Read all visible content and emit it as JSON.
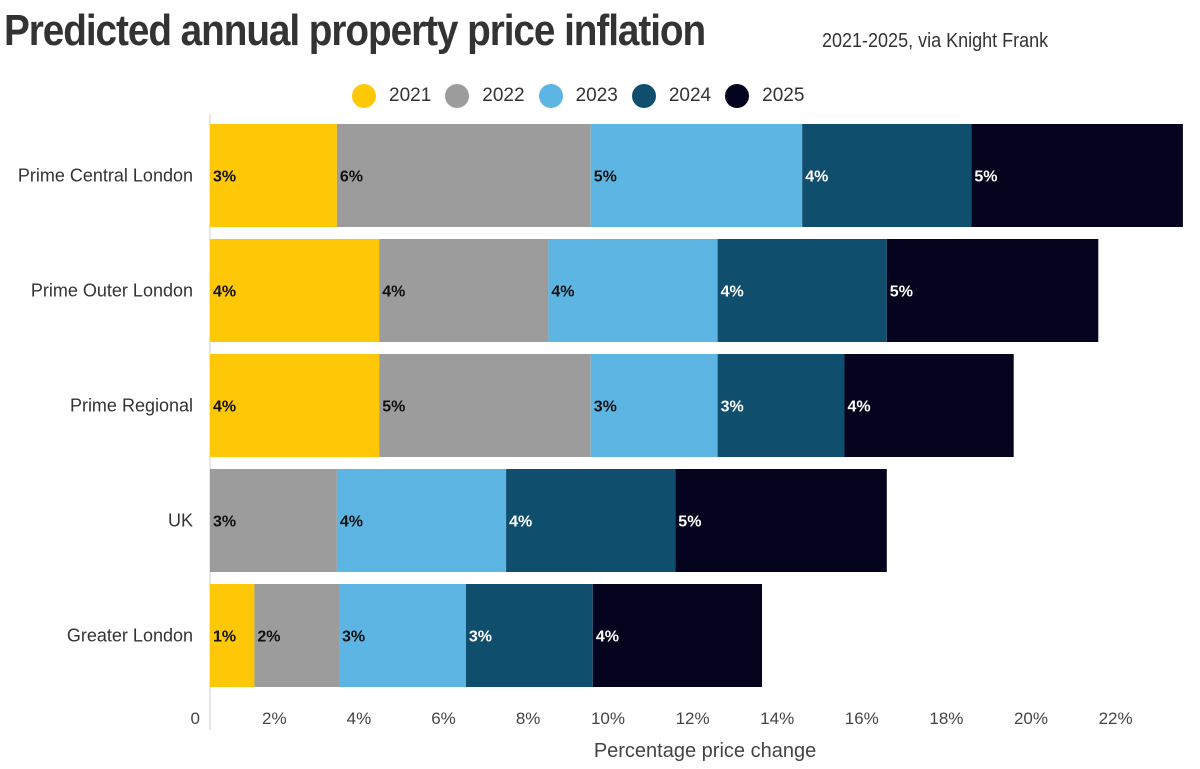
{
  "chart_data": {
    "type": "bar",
    "orientation": "horizontal",
    "stacked": true,
    "title": "Predicted annual property price inflation",
    "subtitle": "2021-2025, via Knight Frank",
    "xlabel": "Percentage price change",
    "ylabel": "",
    "xlim": [
      0,
      23.1
    ],
    "x_ticks": [
      0,
      2,
      4,
      6,
      8,
      10,
      12,
      14,
      16,
      18,
      20,
      22
    ],
    "x_tick_labels": [
      "0",
      "2%",
      "4%",
      "6%",
      "8%",
      "10%",
      "12%",
      "14%",
      "16%",
      "18%",
      "20%",
      "22%"
    ],
    "grid": false,
    "legend_position": "top-center",
    "categories": [
      "Prime Central London",
      "Prime Outer London",
      "Prime Regional",
      "UK",
      "Greater London"
    ],
    "series": [
      {
        "name": "2021",
        "color": "#FEC806",
        "label_color": "#111111",
        "values": [
          3,
          4,
          4,
          0,
          1.05
        ],
        "labels": [
          "3%",
          "4%",
          "4%",
          "",
          "1%"
        ]
      },
      {
        "name": "2022",
        "color": "#9C9C9C",
        "label_color": "#111111",
        "values": [
          6,
          4,
          5,
          3,
          2
        ],
        "labels": [
          "6%",
          "4%",
          "5%",
          "3%",
          "2%"
        ]
      },
      {
        "name": "2023",
        "color": "#5DB5E3",
        "label_color": "#111111",
        "values": [
          5,
          4,
          3,
          4,
          3
        ],
        "labels": [
          "5%",
          "4%",
          "3%",
          "4%",
          "3%"
        ]
      },
      {
        "name": "2024",
        "color": "#104E6E",
        "label_color": "#ffffff",
        "values": [
          4,
          4,
          3,
          4,
          3
        ],
        "labels": [
          "4%",
          "4%",
          "3%",
          "4%",
          "3%"
        ]
      },
      {
        "name": "2025",
        "color": "#05041E",
        "label_color": "#ffffff",
        "values": [
          5,
          5,
          4,
          5,
          4
        ],
        "labels": [
          "5%",
          "5%",
          "4%",
          "5%",
          "4%"
        ]
      }
    ]
  }
}
